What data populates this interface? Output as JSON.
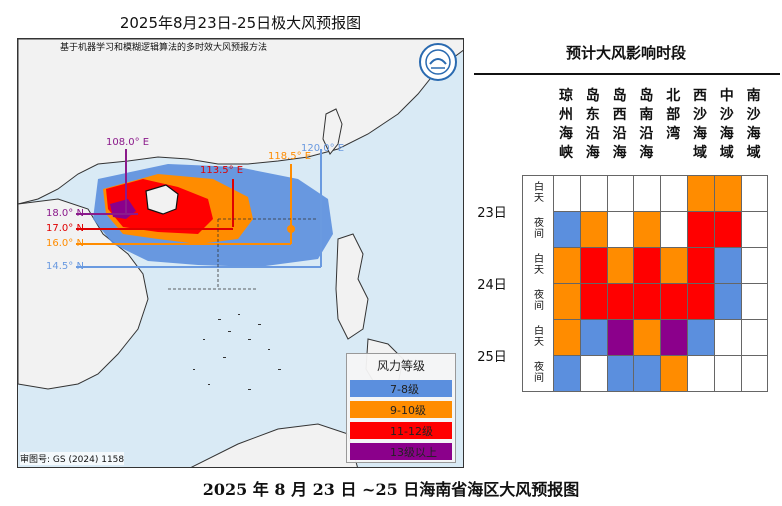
{
  "map": {
    "title": "2025年8月23日-25日极大风预报图",
    "subtitle": "基于机器学习和模糊逻辑算法的多时效大风预报方法",
    "review_number": "审图号: GS (2024) 1158",
    "lon_labels": [
      "108.0° E",
      "113.5° E",
      "118.5° E",
      "120.0° E"
    ],
    "lat_labels": [
      "18.0° N",
      "17.0° N",
      "16.0° N",
      "14.5° N"
    ],
    "legend": {
      "title": "风力等级",
      "items": [
        {
          "label": "7-8级",
          "color": "#5b8fde"
        },
        {
          "label": "9-10级",
          "color": "#ff8c00"
        },
        {
          "label": "11-12级",
          "color": "#ff0000"
        },
        {
          "label": "13级以上",
          "color": "#8b008b"
        }
      ]
    },
    "colors": {
      "sea": "#d9eaf5",
      "land": "#f2f2f2",
      "lat_line_purple": "#8b1a8b",
      "line_red": "#e00000",
      "line_orange": "#ff8c00",
      "line_blue": "#6a9ae0"
    }
  },
  "table": {
    "title": "预计大风影响时段",
    "columns": [
      "琼州海峡",
      "岛东沿海",
      "岛西沿海",
      "岛南沿海",
      "北部湾",
      "西沙海域",
      "中沙海域",
      "南沙海域"
    ],
    "days": [
      "23日",
      "24日",
      "25日"
    ],
    "periods": [
      "白天",
      "夜间"
    ],
    "rows": [
      {
        "day": "23日",
        "period": "白天",
        "levels": [
          0,
          0,
          0,
          0,
          0,
          2,
          2,
          0
        ]
      },
      {
        "day": "23日",
        "period": "夜间",
        "levels": [
          1,
          2,
          0,
          2,
          0,
          3,
          3,
          0
        ]
      },
      {
        "day": "24日",
        "period": "白天",
        "levels": [
          2,
          3,
          2,
          3,
          2,
          3,
          1,
          0
        ]
      },
      {
        "day": "24日",
        "period": "夜间",
        "levels": [
          2,
          3,
          3,
          3,
          3,
          3,
          1,
          0
        ]
      },
      {
        "day": "25日",
        "period": "白天",
        "levels": [
          2,
          1,
          4,
          2,
          4,
          1,
          0,
          0
        ]
      },
      {
        "day": "25日",
        "period": "夜间",
        "levels": [
          1,
          0,
          1,
          1,
          2,
          0,
          0,
          0
        ]
      }
    ],
    "level_colors": [
      "#ffffff",
      "#5b8fde",
      "#ff8c00",
      "#ff0000",
      "#8b008b"
    ]
  },
  "caption": "2025 年 8 月 23 日 ~25 日海南省海区大风预报图"
}
